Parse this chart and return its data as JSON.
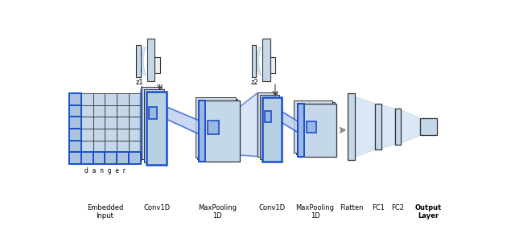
{
  "bg_color": "#ffffff",
  "labels": {
    "embedded_input": "Embedded\nInput",
    "conv1d_1": "Conv1D",
    "maxpool_1": "MaxPooling\n1D",
    "conv1d_2": "Conv1D",
    "maxpool_2": "MaxPooling\n1D",
    "flatten": "Flatten",
    "fc1": "FC1",
    "fc2": "FC2",
    "output": "Output\nLayer",
    "z1": "z1",
    "z2": "z2",
    "danger": "d  a  n  g  e  r"
  },
  "colors": {
    "light_blue": "#c5d8ea",
    "mid_blue": "#b0c8de",
    "dark_outline": "#333333",
    "blue_outline": "#1a4ecc",
    "fan_fill": "#c8ddf0",
    "arc_color": "#b0cce0",
    "white": "#ffffff",
    "gray_outline": "#888888",
    "arrow_gray": "#888888"
  }
}
